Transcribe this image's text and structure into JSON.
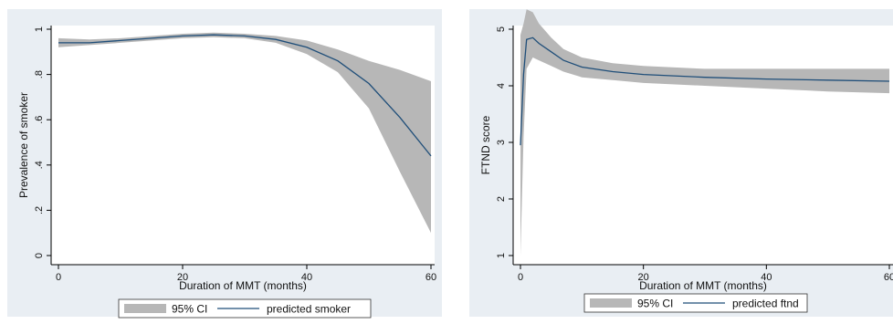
{
  "colors": {
    "panel_bg": "#e9eef3",
    "plot_bg": "#ffffff",
    "ci_fill": "#b7b7b7",
    "line": "#1f4e79",
    "axis": "#000000"
  },
  "chart_data": [
    {
      "type": "line",
      "title": "",
      "xlabel": "Duration of MMT (months)",
      "ylabel": "Prevalence of smoker",
      "xlim": [
        0,
        60
      ],
      "ylim": [
        0,
        1
      ],
      "xticks": [
        0,
        20,
        40,
        60
      ],
      "xtick_labels": [
        "0",
        "20",
        "40",
        "60"
      ],
      "yticks": [
        0,
        0.2,
        0.4,
        0.6,
        0.8,
        1
      ],
      "ytick_labels": [
        "0",
        ".2",
        ".4",
        ".6",
        ".8",
        "1"
      ],
      "grid": false,
      "legend_position": "bottom",
      "series": [
        {
          "name": "predicted smoker",
          "x": [
            0,
            5,
            10,
            15,
            20,
            25,
            30,
            35,
            40,
            45,
            50,
            55,
            60
          ],
          "y": [
            0.94,
            0.94,
            0.95,
            0.96,
            0.97,
            0.975,
            0.97,
            0.955,
            0.92,
            0.86,
            0.76,
            0.61,
            0.44
          ],
          "ci_lower": [
            0.92,
            0.93,
            0.94,
            0.95,
            0.96,
            0.965,
            0.96,
            0.94,
            0.89,
            0.81,
            0.65,
            0.37,
            0.1
          ],
          "ci_upper": [
            0.96,
            0.955,
            0.96,
            0.97,
            0.98,
            0.985,
            0.98,
            0.97,
            0.95,
            0.91,
            0.86,
            0.82,
            0.77
          ]
        }
      ],
      "legend": [
        {
          "label": "95% CI",
          "kind": "area"
        },
        {
          "label": "predicted smoker",
          "kind": "line"
        }
      ]
    },
    {
      "type": "line",
      "title": "",
      "xlabel": "Duration of MMT (months)",
      "ylabel": "FTND score",
      "xlim": [
        0,
        60
      ],
      "ylim": [
        1,
        5
      ],
      "xticks": [
        0,
        20,
        40,
        60
      ],
      "xtick_labels": [
        "0",
        "20",
        "40",
        "60"
      ],
      "yticks": [
        1,
        2,
        3,
        4,
        5
      ],
      "ytick_labels": [
        "1",
        "2",
        "3",
        "4",
        "5"
      ],
      "grid": false,
      "legend_position": "bottom",
      "series": [
        {
          "name": "predicted ftnd",
          "x": [
            0,
            0.5,
            1,
            2,
            3,
            5,
            7,
            10,
            15,
            20,
            30,
            40,
            50,
            60
          ],
          "y": [
            2.95,
            4.2,
            4.82,
            4.85,
            4.75,
            4.6,
            4.45,
            4.33,
            4.25,
            4.2,
            4.15,
            4.12,
            4.1,
            4.08
          ],
          "ci_lower": [
            1.0,
            3.1,
            4.3,
            4.5,
            4.45,
            4.35,
            4.25,
            4.15,
            4.1,
            4.05,
            4.0,
            3.95,
            3.9,
            3.87
          ],
          "ci_upper": [
            4.9,
            5.1,
            5.35,
            5.3,
            5.1,
            4.85,
            4.65,
            4.5,
            4.4,
            4.35,
            4.3,
            4.3,
            4.3,
            4.3
          ]
        }
      ],
      "legend": [
        {
          "label": "95% CI",
          "kind": "area"
        },
        {
          "label": "predicted ftnd",
          "kind": "line"
        }
      ]
    }
  ]
}
